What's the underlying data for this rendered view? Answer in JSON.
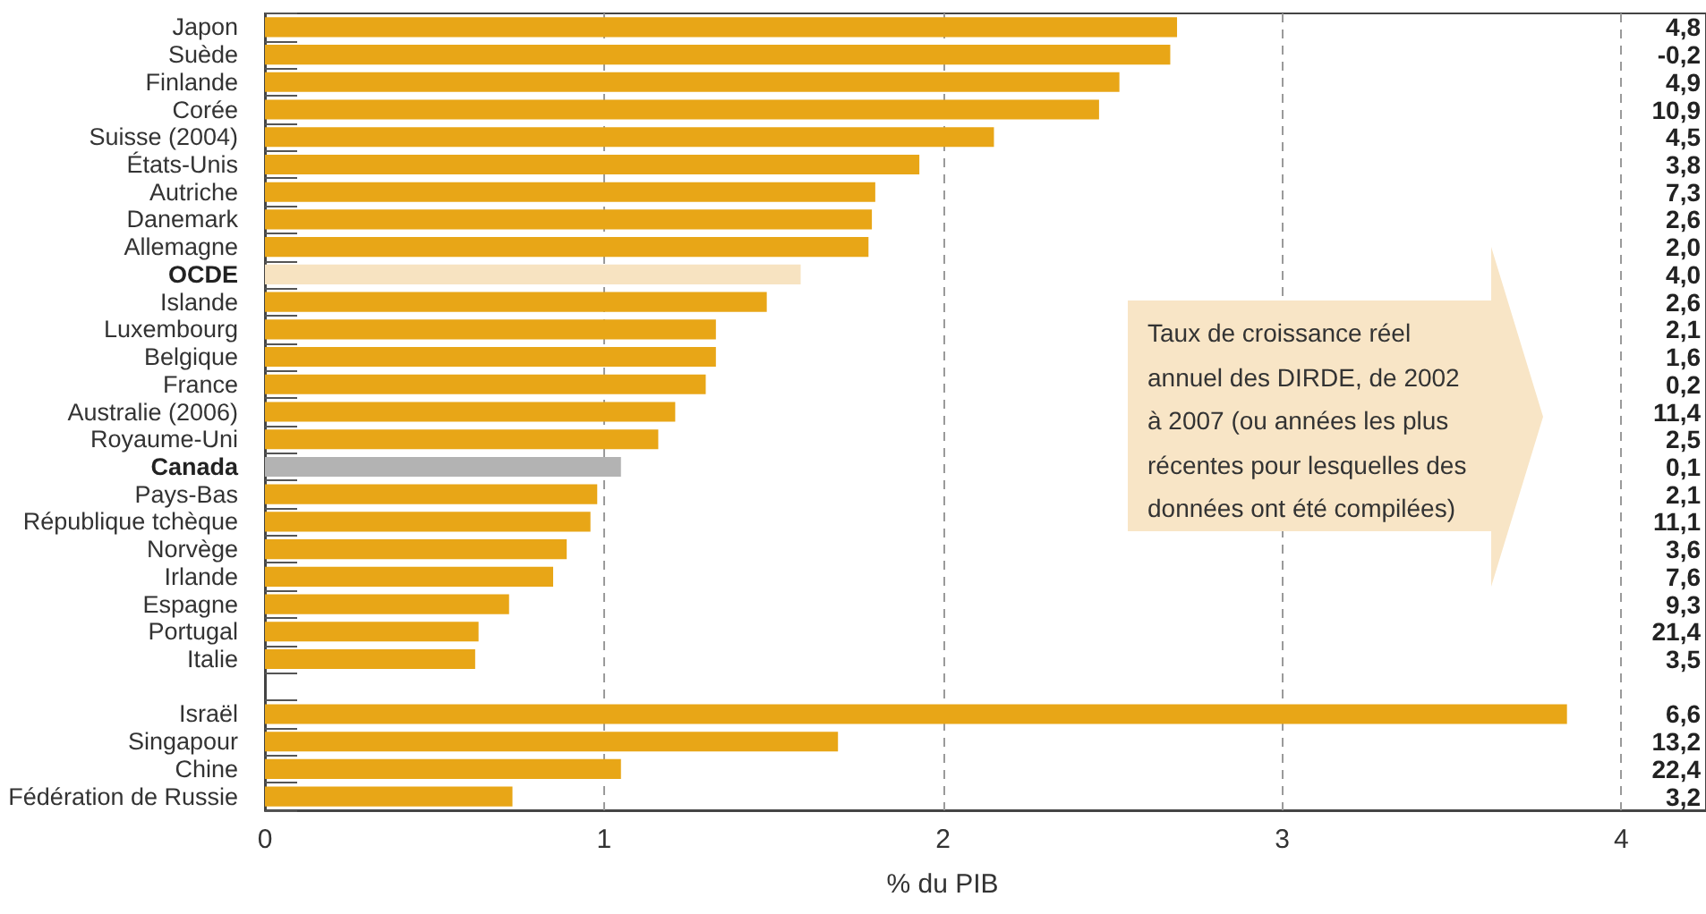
{
  "chart_data": {
    "type": "bar",
    "orientation": "horizontal",
    "xlabel": "% du PIB",
    "categories": [
      "Japon",
      "Suède",
      "Finlande",
      "Corée",
      "Suisse (2004)",
      "États-Unis",
      "Autriche",
      "Danemark",
      "Allemagne",
      "OCDE",
      "Islande",
      "Luxembourg",
      "Belgique",
      "France",
      "Australie (2006)",
      "Royaume-Uni",
      "Canada",
      "Pays-Bas",
      "République tchèque",
      "Norvège",
      "Irlande",
      "Espagne",
      "Portugal",
      "Italie",
      null,
      "Israël",
      "Singapour",
      "Chine",
      "Fédération de Russie"
    ],
    "values": [
      2.69,
      2.67,
      2.52,
      2.46,
      2.15,
      1.93,
      1.8,
      1.79,
      1.78,
      1.58,
      1.48,
      1.33,
      1.33,
      1.3,
      1.21,
      1.16,
      1.05,
      0.98,
      0.96,
      0.89,
      0.85,
      0.72,
      0.63,
      0.62,
      null,
      3.84,
      1.69,
      1.05,
      0.73
    ],
    "colors": [
      "#e8a617",
      "#e8a617",
      "#e8a617",
      "#e8a617",
      "#e8a617",
      "#e8a617",
      "#e8a617",
      "#e8a617",
      "#e8a617",
      "#f7e3c1",
      "#e8a617",
      "#e8a617",
      "#e8a617",
      "#e8a617",
      "#e8a617",
      "#e8a617",
      "#b3b3b3",
      "#e8a617",
      "#e8a617",
      "#e8a617",
      "#e8a617",
      "#e8a617",
      "#e8a617",
      "#e8a617",
      null,
      "#e8a617",
      "#e8a617",
      "#e8a617",
      "#e8a617"
    ],
    "xlim": [
      0,
      4.25
    ],
    "xticks": [
      0,
      1,
      2,
      3,
      4
    ],
    "grid": "x",
    "annotations": [
      "Taux de croissance réel annuel des DIRDE, de 2002 à 2007 (ou années les plus récentes pour lesquelles des données ont été compilées)",
      "4,8",
      "-0,2",
      "4,9",
      "10,9",
      "4,5",
      "3,8",
      "7,3",
      "2,6",
      "2,0",
      "4,0",
      "2,6",
      "2,1",
      "1,6",
      "0,2",
      "11,4",
      "2,5",
      "0,1",
      "2,1",
      "11,1",
      "3,6",
      "7,6",
      "9,3",
      "21,4",
      "3,5",
      "6,6",
      "13,2",
      "22,4",
      "3,2"
    ]
  }
}
